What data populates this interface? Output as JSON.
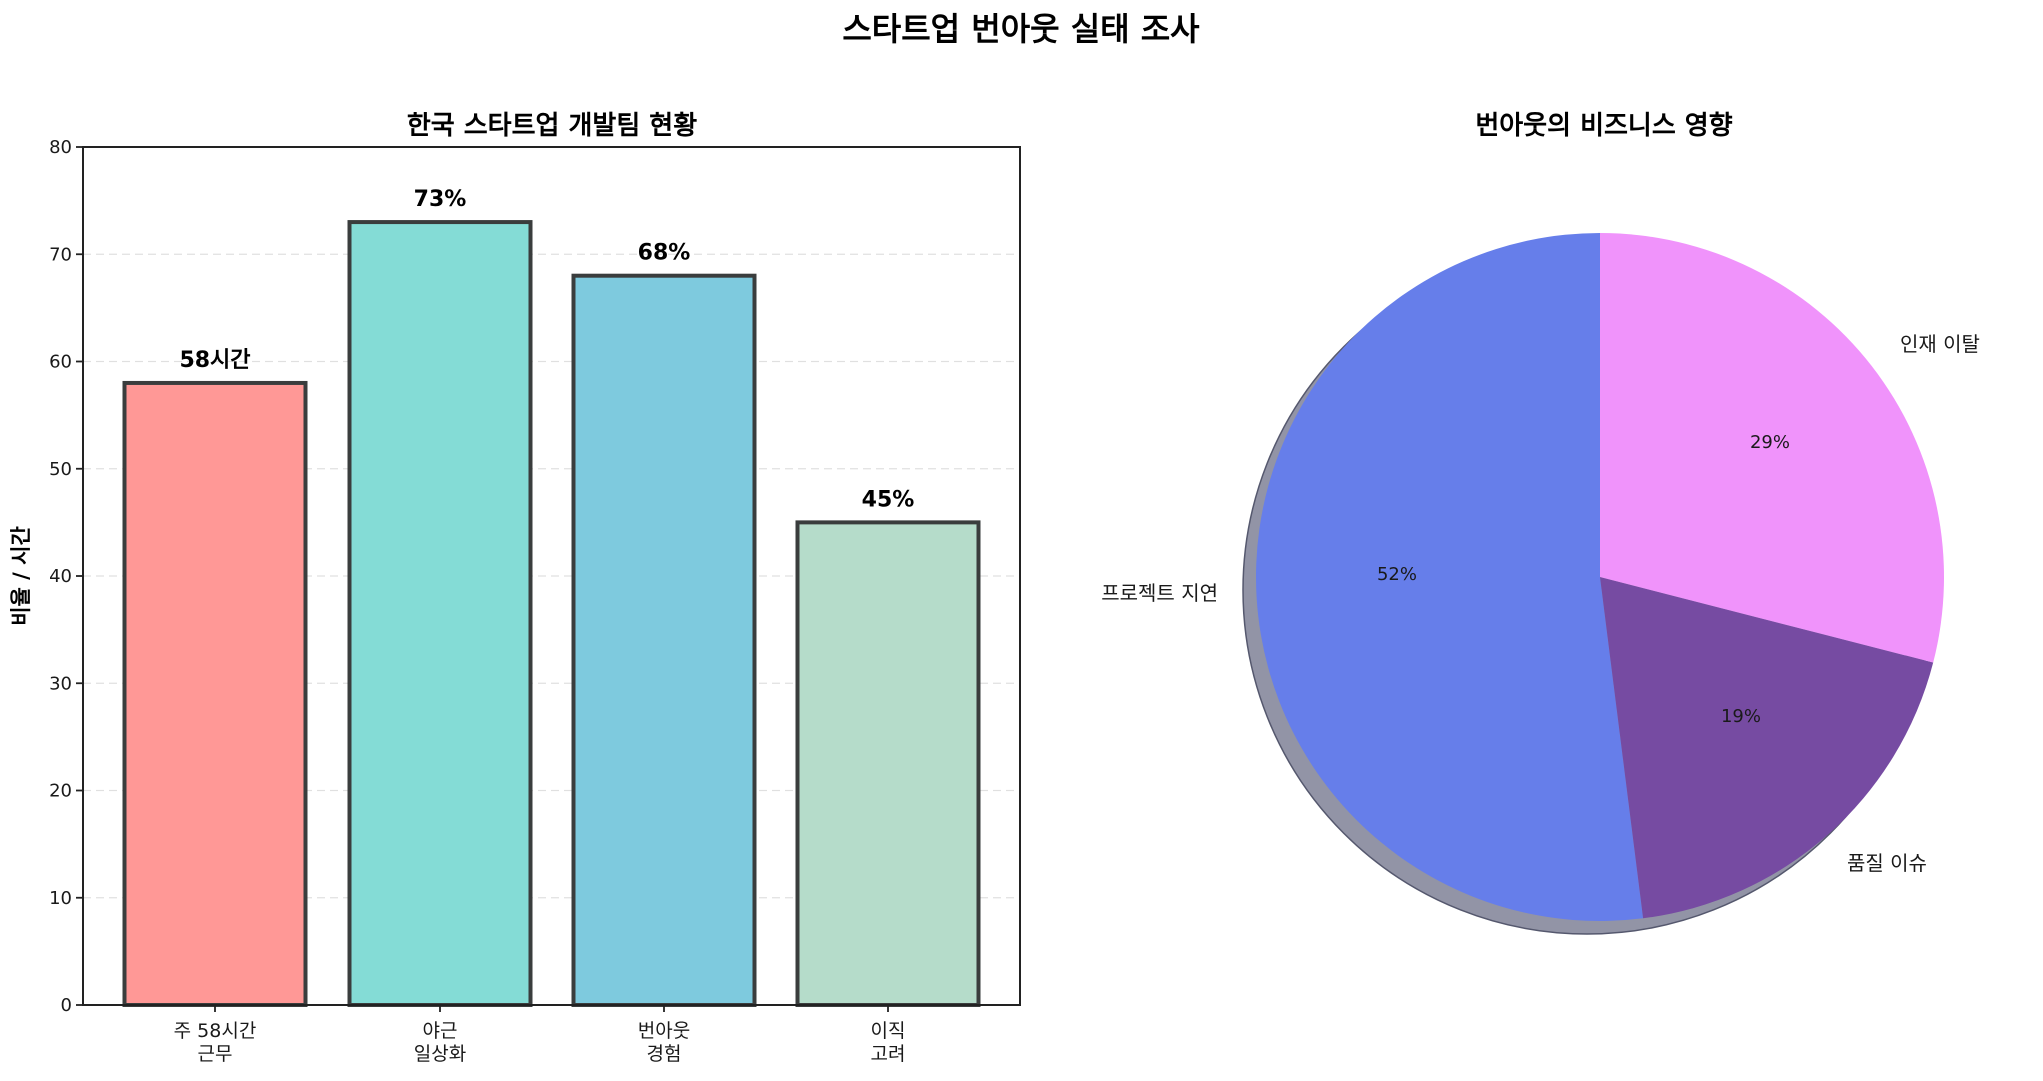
{
  "figure": {
    "suptitle": "스타트업 번아웃 실태 조사"
  },
  "bar_panel": {
    "title": "한국 스타트업 개발팀 현황",
    "ylabel": "비율 / 시간",
    "yticks": [
      "0",
      "10",
      "20",
      "30",
      "40",
      "50",
      "60",
      "70",
      "80"
    ],
    "bars": [
      {
        "label_line1": "주 58시간",
        "label_line2": "근무",
        "value": 58,
        "value_label": "58시간",
        "color": "#FF9896"
      },
      {
        "label_line1": "야근",
        "label_line2": "일상화",
        "value": 73,
        "value_label": "73%",
        "color": "#84DCD6"
      },
      {
        "label_line1": "번아웃",
        "label_line2": "경험",
        "value": 68,
        "value_label": "68%",
        "color": "#7ECADE"
      },
      {
        "label_line1": "이직",
        "label_line2": "고려",
        "value": 45,
        "value_label": "45%",
        "color": "#B5DCCA"
      }
    ]
  },
  "pie_panel": {
    "title": "번아웃의 비즈니스 영향",
    "slices": [
      {
        "label": "프로젝트 지연",
        "value": 52,
        "pct_label": "52%",
        "color": "#667EEA"
      },
      {
        "label": "품질 이슈",
        "value": 19,
        "pct_label": "19%",
        "color": "#764BA2"
      },
      {
        "label": "인재 이탈",
        "value": 29,
        "pct_label": "29%",
        "color": "#F093FB"
      }
    ],
    "shadow_color": "#9294A6"
  },
  "chart_data": [
    {
      "type": "bar",
      "title": "한국 스타트업 개발팀 현황",
      "categories": [
        "주 58시간\n근무",
        "야근\n일상화",
        "번아웃\n경험",
        "이직\n고려"
      ],
      "values": [
        58,
        73,
        68,
        45
      ],
      "value_labels": [
        "58시간",
        "73%",
        "68%",
        "45%"
      ],
      "colors": [
        "#FF6B6B",
        "#4ECDC4",
        "#45B7D1",
        "#96CEB4"
      ],
      "xlabel": "",
      "ylabel": "비율 / 시간",
      "ylim": [
        0,
        80
      ],
      "yticks": [
        0,
        10,
        20,
        30,
        40,
        50,
        60,
        70,
        80
      ],
      "grid": "y dashed",
      "legend": null
    },
    {
      "type": "pie",
      "title": "번아웃의 비즈니스 영향",
      "labels": [
        "프로젝트 지연",
        "품질 이슈",
        "인재 이탈"
      ],
      "values": [
        52,
        19,
        29
      ],
      "pct_labels": [
        "52%",
        "19%",
        "29%"
      ],
      "colors": [
        "#667EEA",
        "#764BA2",
        "#F093FB"
      ],
      "startangle": 90,
      "shadow": true
    }
  ]
}
